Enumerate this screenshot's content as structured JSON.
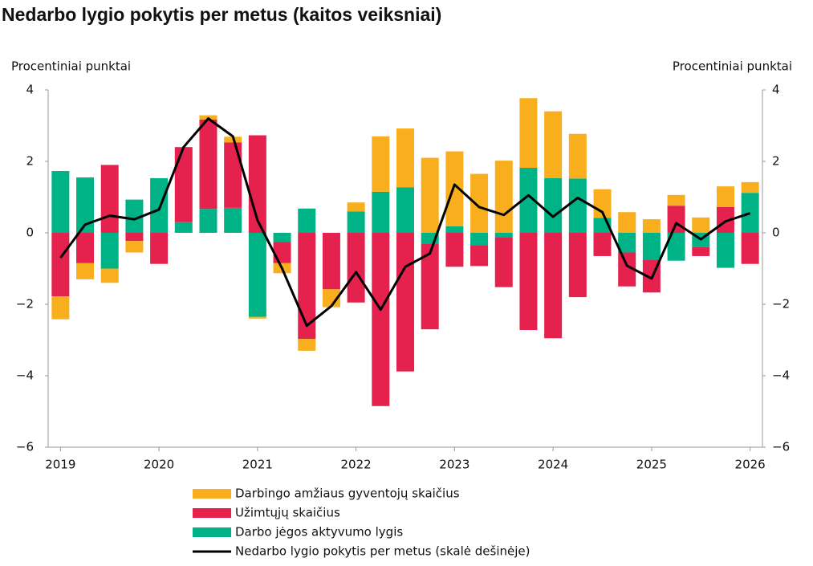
{
  "chart_data": {
    "type": "bar",
    "title": "Nedarbo lygio pokytis per metus (kaitos veiksniai)",
    "ylabel": "Procentiniai punktai",
    "y2label": "Procentiniai punktai",
    "categories": [
      "2019",
      null,
      null,
      null,
      "2020",
      null,
      null,
      null,
      "2021",
      null,
      null,
      null,
      "2022",
      null,
      null,
      null,
      "2023",
      null,
      null,
      null,
      "2024",
      null,
      null,
      null,
      "2025",
      null,
      null,
      null,
      "2026"
    ],
    "series": [
      {
        "name": "Darbo jėgos aktyvumo lygis",
        "color": "#00b386",
        "values": [
          1.73,
          1.55,
          -1.0,
          0.93,
          1.53,
          0.3,
          0.67,
          0.7,
          -2.35,
          -0.25,
          0.68,
          0,
          0.6,
          1.15,
          1.27,
          -0.3,
          0.18,
          -0.35,
          -0.12,
          1.82,
          1.53,
          1.52,
          0.42,
          -0.55,
          -0.75,
          -0.78,
          -0.4,
          -0.98,
          1.12
        ]
      },
      {
        "name": "Užimtųjų skaičius",
        "color": "#e5214e",
        "values": [
          -1.78,
          -0.85,
          1.9,
          -0.23,
          -0.87,
          2.1,
          2.5,
          1.83,
          2.73,
          -0.6,
          -2.97,
          -1.58,
          -1.95,
          -4.85,
          -3.88,
          -2.4,
          -0.95,
          -0.58,
          -1.4,
          -2.72,
          -2.95,
          -1.8,
          -0.65,
          -0.95,
          -0.92,
          0.76,
          -0.25,
          0.72,
          -0.87
        ]
      },
      {
        "name": "Darbingo amžiaus gyventojų skaičius",
        "color": "#f9ae1d",
        "values": [
          -0.64,
          -0.45,
          -0.4,
          -0.32,
          0,
          0,
          0.12,
          0.16,
          -0.05,
          -0.28,
          -0.33,
          -0.5,
          0.25,
          1.55,
          1.65,
          2.1,
          2.1,
          1.65,
          2.02,
          1.95,
          1.87,
          1.25,
          0.8,
          0.58,
          0.38,
          0.3,
          0.43,
          0.58,
          0.3
        ]
      },
      {
        "name": "Nedarbo lygio pokytis per metus (skalė dešinėje)",
        "type": "line",
        "axis": "y2",
        "color": "#000000",
        "values": [
          -0.7,
          0.23,
          0.48,
          0.38,
          0.65,
          2.4,
          3.2,
          2.7,
          0.35,
          -1.0,
          -2.6,
          -2.05,
          -1.1,
          -2.15,
          -0.95,
          -0.58,
          1.35,
          0.72,
          0.5,
          1.05,
          0.45,
          0.98,
          0.58,
          -0.92,
          -1.28,
          0.27,
          -0.18,
          0.32,
          0.55
        ]
      }
    ],
    "legend_order": [
      2,
      1,
      0,
      3
    ],
    "ylim": [
      -6,
      4
    ],
    "yticks": [
      {
        "value": -6,
        "label": "−6"
      },
      {
        "value": -4,
        "label": "−4"
      },
      {
        "value": -2,
        "label": "−2"
      },
      0,
      2,
      4
    ],
    "y2lim": [
      -6,
      4
    ],
    "y2ticks": [
      {
        "value": -6,
        "label": "−6"
      },
      {
        "value": -4,
        "label": "−4"
      },
      {
        "value": -2,
        "label": "−2"
      },
      0,
      2,
      4
    ]
  }
}
